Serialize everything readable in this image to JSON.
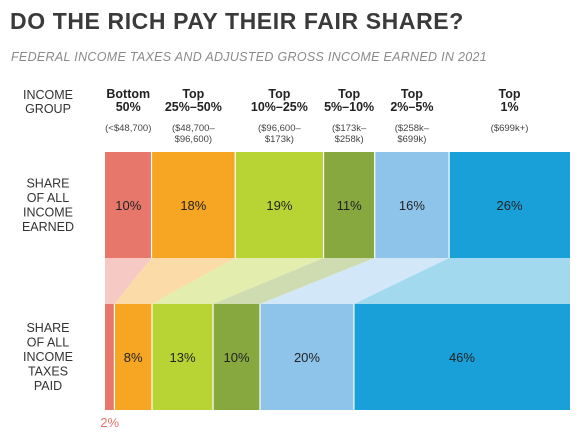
{
  "title": "DO THE RICH PAY THEIR FAIR SHARE?",
  "subtitle": "FEDERAL INCOME TAXES AND ADJUSTED GROSS INCOME EARNED IN 2021",
  "chart_data": {
    "type": "bar",
    "orientation": "horizontal-stacked",
    "header_label": [
      "INCOME",
      "GROUP"
    ],
    "groups": [
      {
        "name": [
          "Bottom",
          "50%"
        ],
        "range": [
          "(<$48,700)"
        ],
        "color": "#e8776b"
      },
      {
        "name": [
          "Top",
          "25%–50%"
        ],
        "range": [
          "($48,700–",
          "$96,600)"
        ],
        "color": "#f6a623"
      },
      {
        "name": [
          "Top",
          "10%–25%"
        ],
        "range": [
          "($96,600–",
          "$173k)"
        ],
        "color": "#b7d334"
      },
      {
        "name": [
          "Top",
          "5%–10%"
        ],
        "range": [
          "($173k–",
          "$258k)"
        ],
        "color": "#87a83e"
      },
      {
        "name": [
          "Top",
          "2%–5%"
        ],
        "range": [
          "($258k–",
          "$699k)"
        ],
        "color": "#8fc4ea"
      },
      {
        "name": [
          "Top",
          "1%"
        ],
        "range": [
          "($699k+)"
        ],
        "color": "#1aa0d8"
      }
    ],
    "series": [
      {
        "name": [
          "SHARE",
          "OF ALL",
          "INCOME",
          "EARNED"
        ],
        "values": [
          10,
          18,
          19,
          11,
          16,
          26
        ],
        "labels": [
          "10%",
          "18%",
          "19%",
          "11%",
          "16%",
          "26%"
        ]
      },
      {
        "name": [
          "SHARE",
          "OF ALL",
          "INCOME",
          "TAXES",
          "PAID"
        ],
        "values": [
          2,
          8,
          13,
          10,
          20,
          46
        ],
        "labels": [
          "2%",
          "8%",
          "13%",
          "10%",
          "20%",
          "46%"
        ]
      }
    ]
  }
}
